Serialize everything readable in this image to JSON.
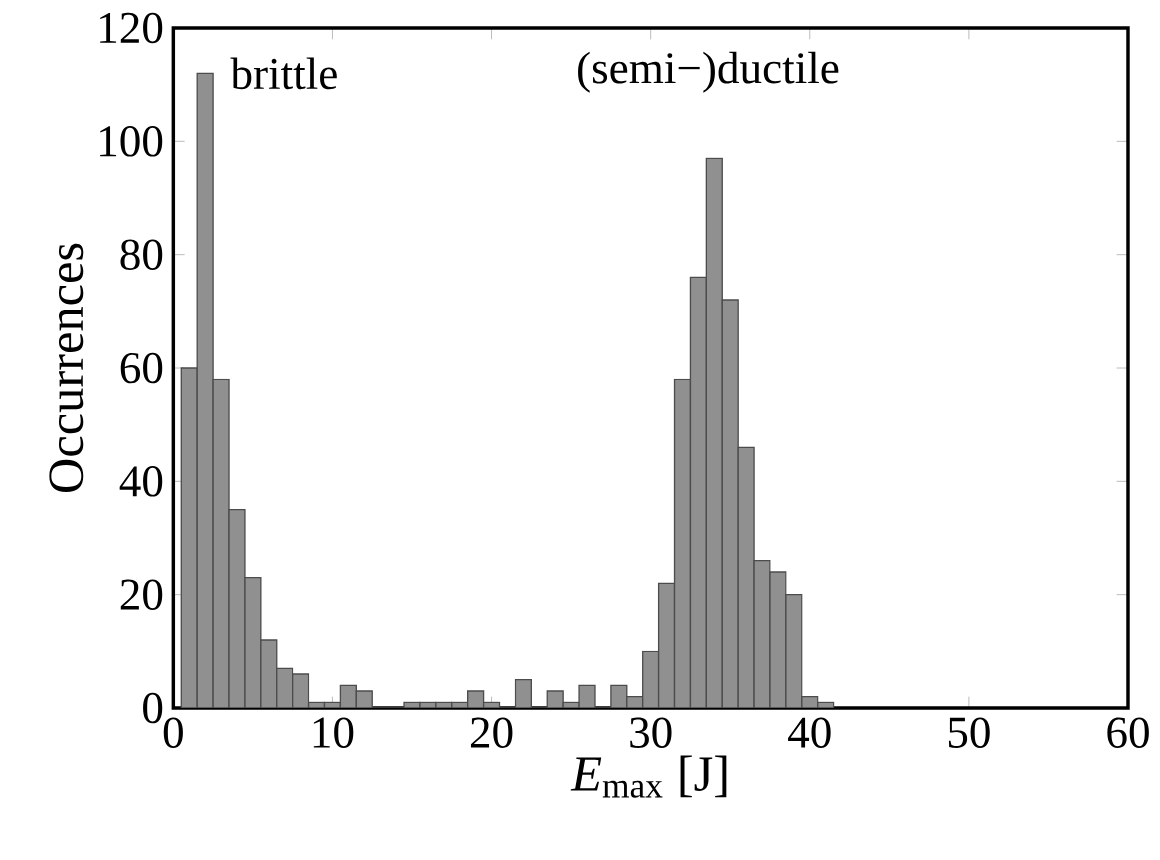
{
  "chart_data": {
    "type": "histogram",
    "bins": [
      0.5,
      1.5,
      2.5,
      3.5,
      4.5,
      5.5,
      6.5,
      7.5,
      8.5,
      9.5,
      10.5,
      11.5,
      12.5,
      13.5,
      14.5,
      15.5,
      16.5,
      17.5,
      18.5,
      19.5,
      20.5,
      21.5,
      22.5,
      23.5,
      24.5,
      25.5,
      26.5,
      27.5,
      28.5,
      29.5,
      30.5,
      31.5,
      32.5,
      33.5,
      34.5,
      35.5,
      36.5,
      37.5,
      38.5,
      39.5,
      40.5,
      41.5
    ],
    "values": [
      60,
      112,
      58,
      35,
      23,
      12,
      7,
      6,
      1,
      1,
      4,
      3,
      0,
      0,
      1,
      1,
      1,
      1,
      3,
      1,
      0,
      5,
      0,
      3,
      1,
      4,
      0,
      4,
      2,
      10,
      22,
      58,
      76,
      97,
      72,
      46,
      26,
      24,
      20,
      2,
      1
    ],
    "color": "#909090",
    "xlim": [
      0,
      60
    ],
    "xticks": [
      0,
      10,
      20,
      30,
      40,
      50,
      60
    ],
    "ylim": [
      0,
      120
    ],
    "yticks": [
      0,
      20,
      40,
      60,
      80,
      100,
      120
    ],
    "xlabel": "*E*$_{max}$ [J]",
    "ylabel": "Occurrences",
    "annotations": [
      {
        "text": "brittle",
        "x": 3,
        "y": 112
      },
      "(semi−)ductile"
    ],
    "grid": false
  }
}
